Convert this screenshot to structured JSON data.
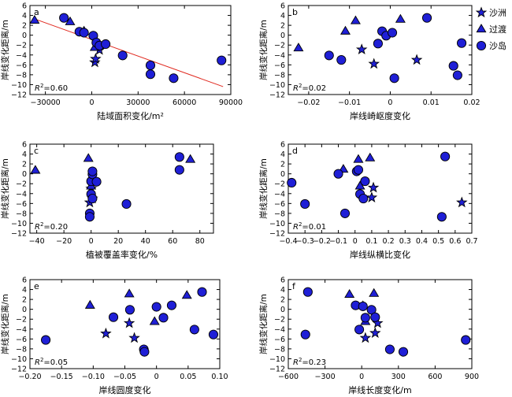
{
  "legend": [
    {
      "name": "沙洲",
      "marker": "star"
    },
    {
      "name": "过渡",
      "marker": "triangle"
    },
    {
      "name": "沙岛",
      "marker": "circle"
    }
  ],
  "colors": {
    "marker_fill": "#1f1fd6",
    "marker_edge": "#000000",
    "fit_line": "#e0281e"
  },
  "chart_data": [
    {
      "type": "scatter",
      "letter": "a",
      "xlabel": "陆域面积变化/m²",
      "ylabel": "岸线变化距离/m",
      "r2_prefix": "R",
      "r2_sup": "2",
      "r2_value": "=0.60",
      "xlim": [
        -40000,
        90000
      ],
      "ylim": [
        -12,
        6
      ],
      "xticks": [
        -30000,
        0,
        30000,
        60000,
        90000
      ],
      "xtick_labels": [
        "−30000",
        "0",
        "30000",
        "60000",
        "90000"
      ],
      "yticks": [
        -12,
        -10,
        -8,
        -6,
        -4,
        -2,
        0,
        2,
        4,
        6
      ],
      "ytick_labels": [
        "−12",
        "−10",
        "−8",
        "−6",
        "−4",
        "−2",
        "0",
        "2",
        "4",
        "6"
      ],
      "fit_line": [
        [
          -38000,
          3.4
        ],
        [
          85000,
          -10.4
        ]
      ],
      "series": [
        {
          "name": "沙洲",
          "points": [
            [
              2000,
              -5.5
            ],
            [
              2500,
              -4.8
            ],
            [
              5000,
              -3
            ]
          ]
        },
        {
          "name": "过渡",
          "points": [
            [
              -37000,
              3
            ],
            [
              -14000,
              2.7
            ],
            [
              -5000,
              0.8
            ],
            [
              2000,
              -2.5
            ]
          ]
        },
        {
          "name": "沙岛",
          "points": [
            [
              -18000,
              3.5
            ],
            [
              -8000,
              0.7
            ],
            [
              -5000,
              0.5
            ],
            [
              1000,
              -0.1
            ],
            [
              3000,
              -1.5
            ],
            [
              5000,
              -2.1
            ],
            [
              9000,
              -1.8
            ],
            [
              20000,
              -4.1
            ],
            [
              38000,
              -6.1
            ],
            [
              38000,
              -7.9
            ],
            [
              53000,
              -8.7
            ],
            [
              84000,
              -5.1
            ]
          ]
        }
      ]
    },
    {
      "type": "scatter",
      "letter": "b",
      "xlabel": "岸线崎岖度变化",
      "ylabel": "岸线变化距离/m",
      "r2_prefix": "R",
      "r2_sup": "2",
      "r2_value": "=0.02",
      "xlim": [
        -0.025,
        0.02
      ],
      "ylim": [
        -12,
        6
      ],
      "xticks": [
        -0.02,
        -0.01,
        0,
        0.01,
        0.02
      ],
      "xtick_labels": [
        "−0.02",
        "−0.01",
        "0",
        "0.01",
        "0.02"
      ],
      "yticks": [
        -12,
        -10,
        -8,
        -6,
        -4,
        -2,
        0,
        2,
        4,
        6
      ],
      "ytick_labels": [
        "−12",
        "−10",
        "−8",
        "−6",
        "−4",
        "−2",
        "0",
        "2",
        "4",
        "6"
      ],
      "series": [
        {
          "name": "沙洲",
          "points": [
            [
              -0.007,
              -2.9
            ],
            [
              -0.004,
              -5.8
            ],
            [
              0.0065,
              -5
            ]
          ]
        },
        {
          "name": "过渡",
          "points": [
            [
              -0.0225,
              -2.6
            ],
            [
              -0.011,
              0.8
            ],
            [
              -0.0085,
              2.9
            ],
            [
              0.0025,
              3.2
            ]
          ]
        },
        {
          "name": "沙岛",
          "points": [
            [
              -0.015,
              -4.1
            ],
            [
              -0.012,
              -5
            ],
            [
              -0.003,
              -1.7
            ],
            [
              -0.002,
              0.8
            ],
            [
              -0.001,
              -0.1
            ],
            [
              0.0005,
              0.5
            ],
            [
              0.001,
              -8.7
            ],
            [
              0.009,
              3.5
            ],
            [
              0.0155,
              -6.2
            ],
            [
              0.0165,
              -8.1
            ],
            [
              0.0175,
              -1.6
            ]
          ]
        }
      ]
    },
    {
      "type": "scatter",
      "letter": "c",
      "xlabel": "植被覆盖率变化/%",
      "ylabel": "岸线变化距离/m",
      "r2_prefix": "R",
      "r2_sup": "2",
      "r2_value": "=0.20",
      "xlim": [
        -45,
        90
      ],
      "ylim": [
        -12,
        6
      ],
      "xticks": [
        -40,
        -20,
        0,
        20,
        40,
        60,
        80
      ],
      "xtick_labels": [
        "−40",
        "−20",
        "0",
        "20",
        "40",
        "60",
        "80"
      ],
      "yticks": [
        -12,
        -10,
        -8,
        -6,
        -4,
        -2,
        0,
        2,
        4,
        6
      ],
      "ytick_labels": [
        "−12",
        "−10",
        "−8",
        "−6",
        "−4",
        "−2",
        "0",
        "2",
        "4",
        "6"
      ],
      "series": [
        {
          "name": "沙洲",
          "points": [
            [
              -1,
              -5.8
            ],
            [
              0,
              -3
            ],
            [
              1,
              -5
            ]
          ]
        },
        {
          "name": "过渡",
          "points": [
            [
              -41,
              0.7
            ],
            [
              -2,
              3.1
            ],
            [
              0,
              -2.5
            ],
            [
              73,
              2.9
            ]
          ]
        },
        {
          "name": "沙岛",
          "points": [
            [
              -1,
              -8
            ],
            [
              -1,
              -8.7
            ],
            [
              0,
              -1.5
            ],
            [
              0,
              -4.1
            ],
            [
              1,
              -0.1
            ],
            [
              1,
              0.5
            ],
            [
              1,
              -5
            ],
            [
              4,
              -1.6
            ],
            [
              26,
              -6.1
            ],
            [
              65,
              3.4
            ],
            [
              65,
              0.8
            ]
          ]
        }
      ]
    },
    {
      "type": "scatter",
      "letter": "d",
      "xlabel": "岸线纵横比变化",
      "ylabel": "岸线变化距离/m",
      "r2_prefix": "R",
      "r2_sup": "2",
      "r2_value": "=0.01",
      "xlim": [
        -0.4,
        0.7
      ],
      "ylim": [
        -12,
        6
      ],
      "xticks": [
        -0.4,
        -0.3,
        -0.2,
        -0.1,
        0,
        0.1,
        0.2,
        0.3,
        0.4,
        0.5,
        0.6,
        0.7
      ],
      "xtick_labels": [
        "−0.4",
        "−0.3",
        "−0.2",
        "−0.1",
        "0",
        "0.1",
        "0.2",
        "0.3",
        "0.4",
        "0.5",
        "0.6",
        "0.7"
      ],
      "yticks": [
        -12,
        -10,
        -8,
        -6,
        -4,
        -2,
        0,
        2,
        4,
        6
      ],
      "ytick_labels": [
        "−12",
        "−10",
        "−8",
        "−6",
        "−4",
        "−2",
        "0",
        "2",
        "4",
        "6"
      ],
      "series": [
        {
          "name": "沙洲",
          "points": [
            [
              0.11,
              -2.8
            ],
            [
              0.1,
              -4.8
            ],
            [
              0.64,
              -5.8
            ]
          ]
        },
        {
          "name": "过渡",
          "points": [
            [
              -0.07,
              0.9
            ],
            [
              0.02,
              2.9
            ],
            [
              0.03,
              -2.5
            ],
            [
              0.09,
              3.2
            ]
          ]
        },
        {
          "name": "沙岛",
          "points": [
            [
              -0.38,
              -1.8
            ],
            [
              -0.3,
              -6.1
            ],
            [
              -0.1,
              0
            ],
            [
              -0.06,
              -8
            ],
            [
              0.01,
              0.5
            ],
            [
              0.02,
              0.8
            ],
            [
              0.03,
              -4.1
            ],
            [
              0.05,
              -5
            ],
            [
              0.06,
              -1.5
            ],
            [
              0.52,
              -8.7
            ],
            [
              0.54,
              3.5
            ]
          ]
        }
      ]
    },
    {
      "type": "scatter",
      "letter": "e",
      "xlabel": "岸线圆度变化",
      "ylabel": "岸线变化距离/m",
      "r2_prefix": "R",
      "r2_sup": "2",
      "r2_value": "=0.05",
      "xlim": [
        -0.2,
        0.1
      ],
      "ylim": [
        -12,
        6
      ],
      "xticks": [
        -0.2,
        -0.15,
        -0.1,
        -0.05,
        0,
        0.05,
        0.1
      ],
      "xtick_labels": [
        "−0.20",
        "−0.15",
        "−0.10",
        "−0.05",
        "0",
        "0.05",
        "0.10"
      ],
      "yticks": [
        -12,
        -10,
        -8,
        -6,
        -4,
        -2,
        0,
        2,
        4,
        6
      ],
      "ytick_labels": [
        "−12",
        "−10",
        "−8",
        "−6",
        "−4",
        "−2",
        "0",
        "2",
        "4",
        "6"
      ],
      "series": [
        {
          "name": "沙洲",
          "points": [
            [
              -0.08,
              -4.9
            ],
            [
              -0.043,
              -2.8
            ],
            [
              -0.035,
              -5.8
            ]
          ]
        },
        {
          "name": "过渡",
          "points": [
            [
              -0.105,
              0.8
            ],
            [
              -0.043,
              3.1
            ],
            [
              -0.003,
              -2.5
            ],
            [
              0.048,
              2.8
            ]
          ]
        },
        {
          "name": "沙岛",
          "points": [
            [
              -0.175,
              -6.2
            ],
            [
              -0.068,
              -1.6
            ],
            [
              -0.042,
              -0.1
            ],
            [
              -0.02,
              -8.1
            ],
            [
              -0.019,
              -8.6
            ],
            [
              0,
              0.5
            ],
            [
              0.011,
              -1.7
            ],
            [
              0.024,
              0.8
            ],
            [
              0.06,
              -4.1
            ],
            [
              0.072,
              3.5
            ],
            [
              0.09,
              -5.1
            ]
          ]
        }
      ]
    },
    {
      "type": "scatter",
      "letter": "f",
      "xlabel": "岸线长度变化/m",
      "ylabel": "岸线变化距离/m",
      "r2_prefix": "R",
      "r2_sup": "2",
      "r2_value": "=0.23",
      "xlim": [
        -600,
        900
      ],
      "ylim": [
        -12,
        6
      ],
      "xticks": [
        -600,
        -300,
        0,
        300,
        600,
        900
      ],
      "xtick_labels": [
        "−600",
        "−300",
        "0",
        "300",
        "600",
        "900"
      ],
      "yticks": [
        -12,
        -10,
        -8,
        -6,
        -4,
        -2,
        0,
        2,
        4,
        6
      ],
      "ytick_labels": [
        "−12",
        "−10",
        "−8",
        "−6",
        "−4",
        "−2",
        "0",
        "2",
        "4",
        "6"
      ],
      "series": [
        {
          "name": "沙洲",
          "points": [
            [
              30,
              -5.8
            ],
            [
              110,
              -4.8
            ],
            [
              130,
              -2.8
            ]
          ]
        },
        {
          "name": "过渡",
          "points": [
            [
              -100,
              3
            ],
            [
              10,
              0.7
            ],
            [
              30,
              -2.5
            ],
            [
              100,
              3.2
            ]
          ]
        },
        {
          "name": "沙岛",
          "points": [
            [
              -460,
              -5.1
            ],
            [
              -440,
              3.5
            ],
            [
              -50,
              0.8
            ],
            [
              -20,
              -4.1
            ],
            [
              10,
              0.6
            ],
            [
              30,
              -1.7
            ],
            [
              80,
              -0.1
            ],
            [
              110,
              -1.6
            ],
            [
              230,
              -8.1
            ],
            [
              340,
              -8.6
            ],
            [
              850,
              -6.2
            ]
          ]
        }
      ]
    }
  ]
}
